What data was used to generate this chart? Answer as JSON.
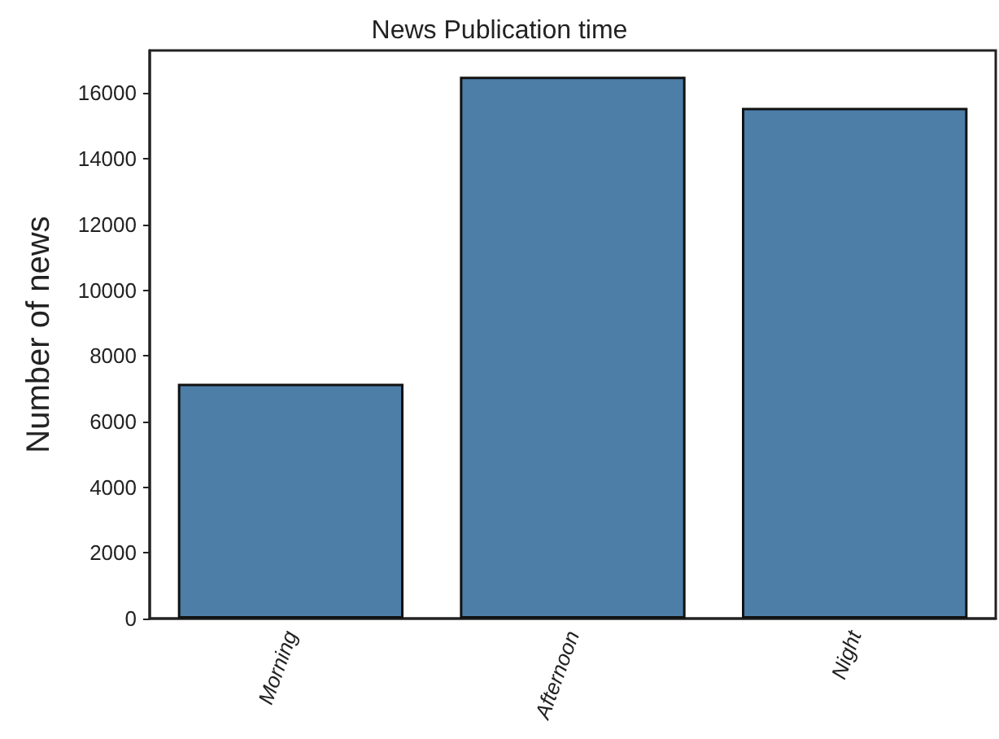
{
  "chart_data": {
    "type": "bar",
    "title": "News Publication time",
    "ylabel": "Number of news",
    "categories": [
      "Morning",
      "Afternoon",
      "Night"
    ],
    "values": [
      7150,
      16500,
      15550
    ],
    "color": "#4c7ea8",
    "ylim": [
      0,
      17300
    ],
    "yticks": [
      0,
      2000,
      4000,
      6000,
      8000,
      10000,
      12000,
      14000,
      16000
    ],
    "grid": false
  }
}
